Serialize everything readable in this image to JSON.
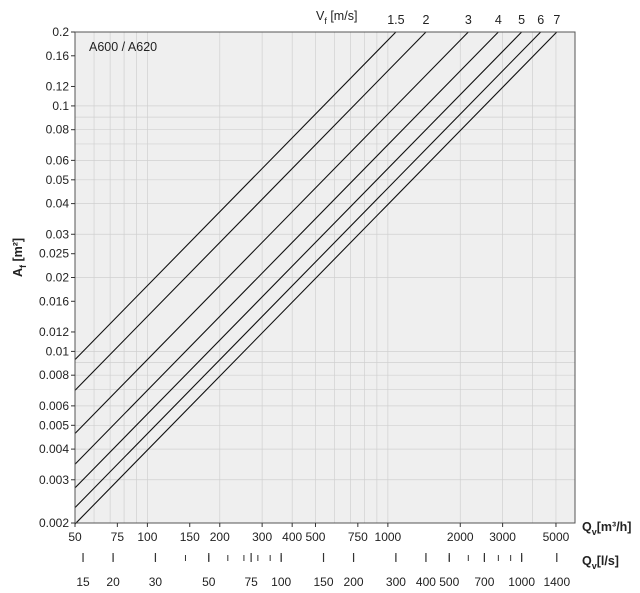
{
  "chart_data": {
    "type": "line",
    "annotation": "A600 / A620",
    "xlabel": "Q",
    "xlabel_sub": "v",
    "xlabel_unit": "[m³/h]",
    "x2label": "Q",
    "x2label_sub": "v",
    "x2label_unit": "[l/s]",
    "ylabel": "A",
    "ylabel_sub": "f",
    "ylabel_unit": " [m²]",
    "vlabel": "V",
    "vlabel_sub": "f",
    "vlabel_unit": " [m/s]",
    "x_scale": "log",
    "y_scale": "log",
    "xlim": [
      50,
      6000
    ],
    "ylim": [
      0.002,
      0.2
    ],
    "grid": true,
    "x_ticks": [
      50,
      75,
      100,
      150,
      200,
      300,
      400,
      500,
      750,
      1000,
      2000,
      3000,
      5000
    ],
    "x_tick_labels": [
      "50",
      "75",
      "100",
      "150",
      "200",
      "300",
      "400",
      "500",
      "750",
      "1000",
      "2000",
      "3000",
      "5000"
    ],
    "x2_ticks": [
      15,
      20,
      30,
      50,
      75,
      100,
      150,
      200,
      300,
      400,
      500,
      700,
      1000,
      1400
    ],
    "x2_tick_labels": [
      "15",
      "20",
      "30",
      "50",
      "75",
      "100",
      "150",
      "200",
      "300",
      "400",
      "500",
      "700",
      "1000",
      "1400"
    ],
    "y_ticks": [
      0.002,
      0.003,
      0.004,
      0.005,
      0.006,
      0.008,
      0.01,
      0.012,
      0.016,
      0.02,
      0.025,
      0.03,
      0.04,
      0.05,
      0.06,
      0.08,
      0.1,
      0.12,
      0.16,
      0.2
    ],
    "y_tick_labels": [
      "0.002",
      "0.003",
      "0.004",
      "0.005",
      "0.006",
      "0.008",
      "0.01",
      "0.012",
      "0.016",
      "0.02",
      "0.025",
      "0.03",
      "0.04",
      "0.05",
      "0.06",
      "0.08",
      "0.1",
      "0.12",
      "0.16",
      "0.2"
    ],
    "series": [
      {
        "name": "1.5",
        "velocity": 1.5,
        "x": [
          50,
          1080
        ],
        "y": [
          0.00926,
          0.2
        ]
      },
      {
        "name": "2",
        "velocity": 2,
        "x": [
          50,
          1440
        ],
        "y": [
          0.00694,
          0.2
        ]
      },
      {
        "name": "3",
        "velocity": 3,
        "x": [
          50,
          2160
        ],
        "y": [
          0.00463,
          0.2
        ]
      },
      {
        "name": "4",
        "velocity": 4,
        "x": [
          50,
          2880
        ],
        "y": [
          0.00347,
          0.2
        ]
      },
      {
        "name": "5",
        "velocity": 5,
        "x": [
          50,
          3600
        ],
        "y": [
          0.00278,
          0.2
        ]
      },
      {
        "name": "6",
        "velocity": 6,
        "x": [
          50,
          4320
        ],
        "y": [
          0.00231,
          0.2
        ]
      },
      {
        "name": "7",
        "velocity": 7,
        "x": [
          50,
          5040
        ],
        "y": [
          0.00198,
          0.2
        ]
      }
    ],
    "colors": {
      "plot_bg": "#efefef",
      "grid": "#d0d0d0",
      "line": "#111111",
      "frame": "#555555"
    }
  }
}
